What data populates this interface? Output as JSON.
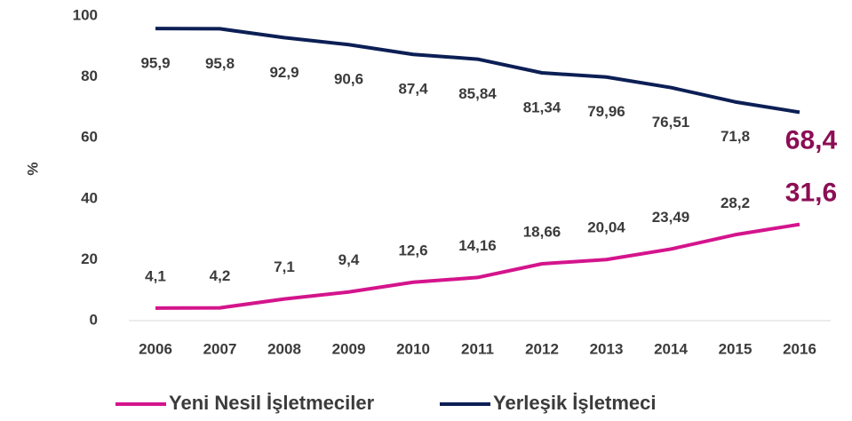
{
  "chart_data": {
    "type": "line",
    "x": [
      2006,
      2007,
      2008,
      2009,
      2010,
      2011,
      2012,
      2013,
      2014,
      2015,
      2016
    ],
    "series": [
      {
        "name": "Yeni Nesil İşletmeciler",
        "color": "#d4148c",
        "values": [
          4.1,
          4.2,
          7.1,
          9.4,
          12.6,
          14.16,
          18.66,
          20.04,
          23.49,
          28.2,
          31.6
        ],
        "value_labels": [
          "4,1",
          "4,2",
          "7,1",
          "9,4",
          "12,6",
          "14,16",
          "18,66",
          "20,04",
          "23,49",
          "28,2",
          "31,6"
        ]
      },
      {
        "name": "Yerleşik İşletmeci",
        "color": "#0c1f55",
        "values": [
          95.9,
          95.8,
          92.9,
          90.6,
          87.4,
          85.84,
          81.34,
          79.96,
          76.51,
          71.8,
          68.4
        ],
        "value_labels": [
          "95,9",
          "95,8",
          "92,9",
          "90,6",
          "87,4",
          "85,84",
          "81,34",
          "79,96",
          "76,51",
          "71,8",
          "68,4"
        ]
      }
    ],
    "y_label": "%",
    "ylim": [
      0,
      100
    ],
    "yticks": [
      0,
      20,
      40,
      60,
      80,
      100
    ],
    "xlim": [
      2006,
      2016
    ],
    "grid": false,
    "legend": "bottom"
  }
}
